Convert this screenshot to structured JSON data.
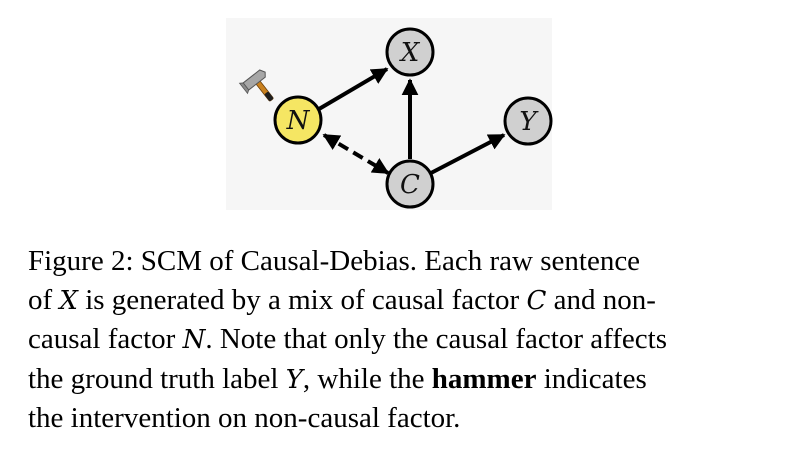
{
  "diagram": {
    "nodes": {
      "n": {
        "label": "N",
        "role": "non-causal factor",
        "fill": "#f5e663"
      },
      "x": {
        "label": "X",
        "role": "raw sentence",
        "fill": "#d0d0d0"
      },
      "y": {
        "label": "Y",
        "role": "ground truth label",
        "fill": "#d0d0d0"
      },
      "c": {
        "label": "C",
        "role": "causal factor",
        "fill": "#d0d0d0"
      }
    },
    "edges": [
      {
        "from": "N",
        "to": "X",
        "style": "solid"
      },
      {
        "from": "C",
        "to": "X",
        "style": "solid"
      },
      {
        "from": "C",
        "to": "Y",
        "style": "solid"
      },
      {
        "from": "N",
        "to": "C",
        "style": "dashed-bidirectional"
      }
    ],
    "intervention_icon": "hammer-icon"
  },
  "caption": {
    "l1": "Figure 2: SCM of Causal-Debias. Each raw sentence",
    "l2a": "of",
    "l2b": "X",
    "l2c": "is generated by a mix of causal factor",
    "l2d": "C",
    "l2e": "and non-",
    "l3a": "causal factor",
    "l3b": "N",
    "l3c": ". Note that only the causal factor affects",
    "l4a": "the ground truth label",
    "l4b": "Y",
    "l4c": ", while the",
    "l4d": "hammer",
    "l4e": "indicates",
    "l5": "the intervention on non-causal factor."
  }
}
